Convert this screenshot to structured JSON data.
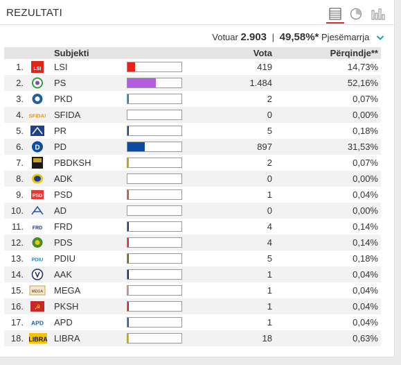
{
  "header": {
    "title": "REZULTATI"
  },
  "views": [
    {
      "name": "table-view",
      "icon": "list-icon",
      "active": true
    },
    {
      "name": "pie-view",
      "icon": "pie-chart-icon",
      "active": false
    },
    {
      "name": "bar-view",
      "icon": "bar-chart-icon",
      "active": false
    }
  ],
  "summary": {
    "voted_label": "Votuar",
    "voted_value": "2.903",
    "turnout_value": "49,58%*",
    "turnout_label": "Pjesëmarrja"
  },
  "table": {
    "columns": {
      "party": "Subjekti",
      "votes": "Vota",
      "percent": "Përqindje**"
    },
    "rows": [
      {
        "no": "1.",
        "name": "LSI",
        "votes": "419",
        "pct": "14,73%",
        "share": 0.1473,
        "color": "#e5231b",
        "logo": "lsi-logo",
        "logo_text": "LSI"
      },
      {
        "no": "2.",
        "name": "PS",
        "votes": "1.484",
        "pct": "52,16%",
        "share": 0.5216,
        "color": "#b35ce0",
        "logo": "ps-logo",
        "logo_text": ""
      },
      {
        "no": "3.",
        "name": "PKD",
        "votes": "2",
        "pct": "0,07%",
        "share": 0.0007,
        "color": "#2a7fc0",
        "logo": "pkd-logo",
        "logo_text": ""
      },
      {
        "no": "4.",
        "name": "SFIDA",
        "votes": "0",
        "pct": "0,00%",
        "share": 0,
        "color": "#f39200",
        "logo": "sfida-logo",
        "logo_text": "SFIDA!"
      },
      {
        "no": "5.",
        "name": "PR",
        "votes": "5",
        "pct": "0,18%",
        "share": 0.0018,
        "color": "#1f3f8f",
        "logo": "pr-logo",
        "logo_text": ""
      },
      {
        "no": "6.",
        "name": "PD",
        "votes": "897",
        "pct": "31,53%",
        "share": 0.3153,
        "color": "#0c4da2",
        "logo": "pd-logo",
        "logo_text": ""
      },
      {
        "no": "7.",
        "name": "PBDKSH",
        "votes": "2",
        "pct": "0,07%",
        "share": 0.0007,
        "color": "#c9a227",
        "logo": "pbdksh-logo",
        "logo_text": ""
      },
      {
        "no": "8.",
        "name": "ADK",
        "votes": "0",
        "pct": "0,00%",
        "share": 0,
        "color": "#1b3f8f",
        "logo": "adk-logo",
        "logo_text": ""
      },
      {
        "no": "9.",
        "name": "PSD",
        "votes": "1",
        "pct": "0,04%",
        "share": 0.0004,
        "color": "#b06040",
        "logo": "psd-logo",
        "logo_text": ""
      },
      {
        "no": "10.",
        "name": "AD",
        "votes": "0",
        "pct": "0,00%",
        "share": 0,
        "color": "#2a55b0",
        "logo": "ad-logo",
        "logo_text": ""
      },
      {
        "no": "11.",
        "name": "FRD",
        "votes": "4",
        "pct": "0,14%",
        "share": 0.0014,
        "color": "#1a3a7a",
        "logo": "frd-logo",
        "logo_text": "FRD"
      },
      {
        "no": "12.",
        "name": "PDS",
        "votes": "4",
        "pct": "0,14%",
        "share": 0.0014,
        "color": "#d32f2f",
        "logo": "pds-logo",
        "logo_text": ""
      },
      {
        "no": "13.",
        "name": "PDIU",
        "votes": "5",
        "pct": "0,18%",
        "share": 0.0018,
        "color": "#6b6b20",
        "logo": "pdiu-logo",
        "logo_text": "PDIU"
      },
      {
        "no": "14.",
        "name": "AAK",
        "votes": "1",
        "pct": "0,04%",
        "share": 0.0004,
        "color": "#1a2a6a",
        "logo": "aak-logo",
        "logo_text": ""
      },
      {
        "no": "15.",
        "name": "MEGA",
        "votes": "1",
        "pct": "0,04%",
        "share": 0.0004,
        "color": "#c9a0a0",
        "logo": "mega-logo",
        "logo_text": ""
      },
      {
        "no": "16.",
        "name": "PKSH",
        "votes": "1",
        "pct": "0,04%",
        "share": 0.0004,
        "color": "#c62828",
        "logo": "pksh-logo",
        "logo_text": ""
      },
      {
        "no": "17.",
        "name": "APD",
        "votes": "1",
        "pct": "0,04%",
        "share": 0.0004,
        "color": "#1e5fb0",
        "logo": "apd-logo",
        "logo_text": "APD"
      },
      {
        "no": "18.",
        "name": "LIBRA",
        "votes": "18",
        "pct": "0,63%",
        "share": 0.0063,
        "color": "#e0b000",
        "logo": "libra-logo",
        "logo_text": "LIBRA"
      }
    ]
  }
}
